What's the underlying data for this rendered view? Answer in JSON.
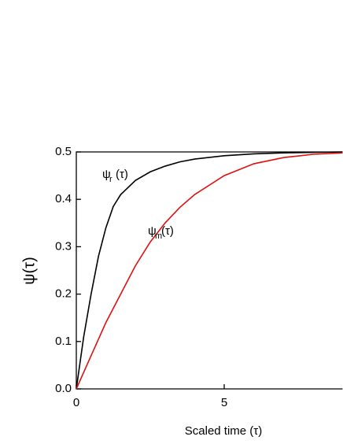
{
  "chart_data": {
    "type": "line",
    "xlabel": "Scaled time (τ)",
    "ylabel": "ψ(τ)",
    "x": [
      0,
      0.25,
      0.5,
      0.75,
      1,
      1.25,
      1.5,
      1.75,
      2,
      2.5,
      3,
      3.5,
      4,
      5,
      6,
      7,
      8,
      9
    ],
    "series": [
      {
        "name": "ψr(τ)",
        "color": "#000000",
        "values": [
          0,
          0.11,
          0.2,
          0.28,
          0.34,
          0.385,
          0.41,
          0.425,
          0.44,
          0.458,
          0.47,
          0.479,
          0.485,
          0.492,
          0.496,
          0.498,
          0.499,
          0.5
        ]
      },
      {
        "name": "ψm(τ)",
        "color": "#e01010",
        "values": [
          0,
          0.035,
          0.07,
          0.105,
          0.14,
          0.17,
          0.2,
          0.23,
          0.26,
          0.31,
          0.35,
          0.383,
          0.41,
          0.45,
          0.475,
          0.488,
          0.495,
          0.498
        ]
      }
    ],
    "annotations": [
      {
        "main": "ψ",
        "sub": "r",
        "tail": "(τ)"
      },
      {
        "main": "ψ",
        "sub": "m",
        "tail": "(τ)"
      }
    ],
    "xlim": [
      0,
      9
    ],
    "xticks": [
      0,
      5
    ],
    "ylim": [
      0,
      0.5
    ],
    "yticks": [
      {
        "value": 0,
        "label": "0.0"
      },
      0.1,
      0.2,
      0.3,
      0.4,
      0.5
    ]
  }
}
